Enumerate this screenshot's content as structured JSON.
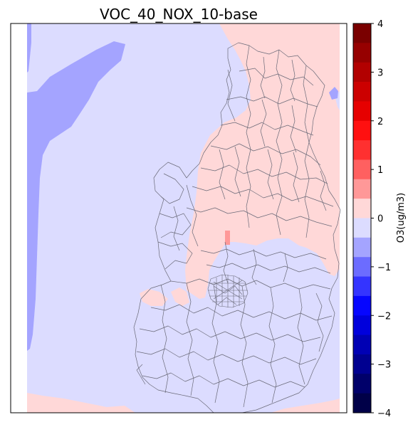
{
  "title": "VOC_40_NOX_10-base",
  "colorbar": {
    "label": "O3(ug/m3)",
    "ticks": [
      "4",
      "3",
      "2",
      "1",
      "0",
      "−1",
      "−2",
      "−3",
      "−4"
    ],
    "colors_top_to_bottom": [
      "#7a0000",
      "#960000",
      "#b20000",
      "#cc0000",
      "#e60000",
      "#ff1010",
      "#ff3030",
      "#ff6060",
      "#ff9898",
      "#ffd8d8",
      "#dcdcff",
      "#a4a4ff",
      "#6c6cff",
      "#3434ff",
      "#0606ff",
      "#0000dc",
      "#0000b4",
      "#000090",
      "#00006a",
      "#000048"
    ]
  },
  "map_colors": {
    "background": "#dcdcff",
    "positive_light": "#ffd8d8",
    "negative_mid": "#a4a4ff",
    "positive_strong": "#ff9898",
    "boundaries": "#6a6a78"
  }
}
